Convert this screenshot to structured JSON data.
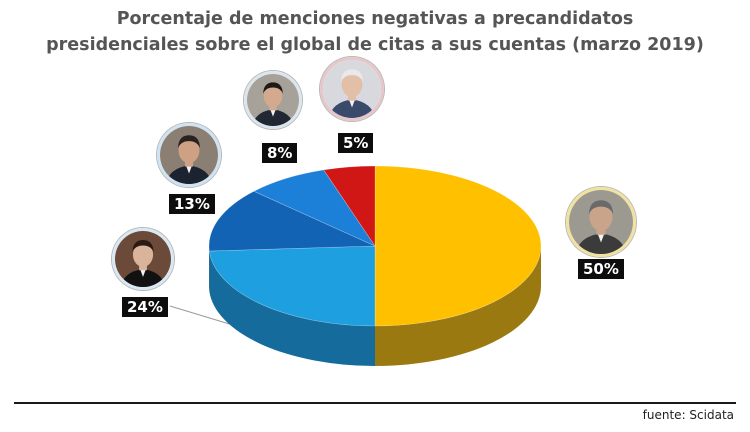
{
  "chart_data": {
    "type": "pie",
    "title": "Porcentaje de menciones negativas a precandidatos presidenciales sobre el global de citas a sus cuentas (marzo 2019)",
    "title_lines": [
      "Porcentaje de menciones negativas a precandidatos",
      "presidenciales sobre el global de citas a sus cuentas (marzo 2019)"
    ],
    "slices": [
      {
        "value": 50,
        "label": "50%",
        "color": "#FFC000",
        "side_color": "#9A7A10",
        "icon": "person-portrait-icon"
      },
      {
        "value": 24,
        "label": "24%",
        "color": "#1E9FE0",
        "side_color": "#156B9C",
        "icon": "person-portrait-icon"
      },
      {
        "value": 13,
        "label": "13%",
        "color": "#1263B4",
        "side_color": "#0B3E72",
        "icon": "person-portrait-icon"
      },
      {
        "value": 8,
        "label": "8%",
        "color": "#1C7FD8",
        "side_color": "#0F4F8A",
        "icon": "person-portrait-icon"
      },
      {
        "value": 5,
        "label": "5%",
        "color": "#D11616",
        "side_color": "#7E0C0C",
        "icon": "person-portrait-icon"
      }
    ],
    "style": "3d-pie"
  },
  "source": "fuente: Scidata"
}
